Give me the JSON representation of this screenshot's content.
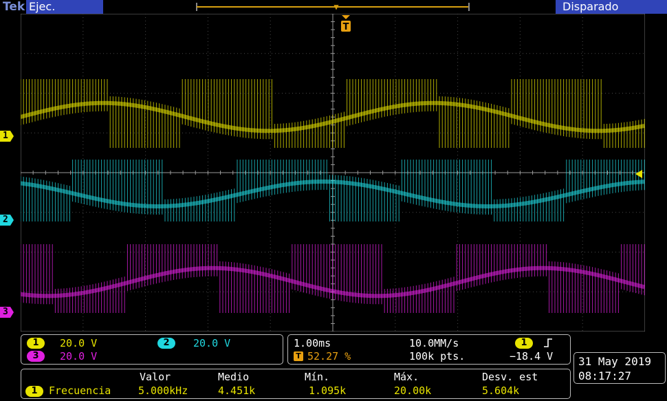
{
  "topbar": {
    "logo": "Tek",
    "run_state": "Ejec.",
    "trigger_state": "Disparado"
  },
  "channels": {
    "ch1": {
      "number": "1",
      "scale": "20.0 V",
      "color": "#e8e400"
    },
    "ch2": {
      "number": "2",
      "scale": "20.0 V",
      "color": "#20d8e0"
    },
    "ch3": {
      "number": "3",
      "scale": "20.0 V",
      "color": "#e020e0"
    }
  },
  "timebase": {
    "horizontal_scale": "1.00ms",
    "sample_rate": "10.0MM/s",
    "trigger_position": "52.27 %",
    "record_length": "100k pts.",
    "trigger_source": "1",
    "trigger_slope": "rising-edge-icon",
    "trigger_level": "−18.4 V",
    "trigger_marker": "T"
  },
  "measurement": {
    "headers": {
      "value": "Valor",
      "mean": "Medio",
      "min": "Mín.",
      "max": "Máx.",
      "std": "Desv. est"
    },
    "source": "1",
    "name": "Frecuencia",
    "value": "5.000kHz",
    "mean": "4.451k",
    "min": "1.095k",
    "max": "20.00k",
    "std": "5.604k"
  },
  "datetime": {
    "date": "31 May 2019",
    "time": "08:17:27"
  },
  "colors": {
    "ch1": "#e8e400",
    "ch2": "#20d8e0",
    "ch3": "#e020e0",
    "status_bar": "#3044b8",
    "trigger": "#e8a010"
  }
}
